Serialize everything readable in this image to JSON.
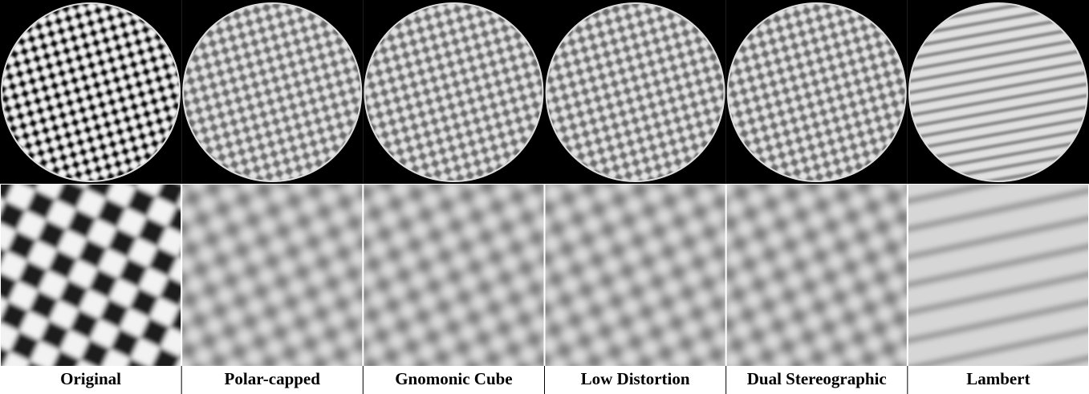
{
  "columns": [
    {
      "label": "Original"
    },
    {
      "label": "Polar-capped"
    },
    {
      "label": "Gnomonic Cube"
    },
    {
      "label": "Low Distortion"
    },
    {
      "label": "Dual Stereographic"
    },
    {
      "label": "Lambert"
    }
  ]
}
